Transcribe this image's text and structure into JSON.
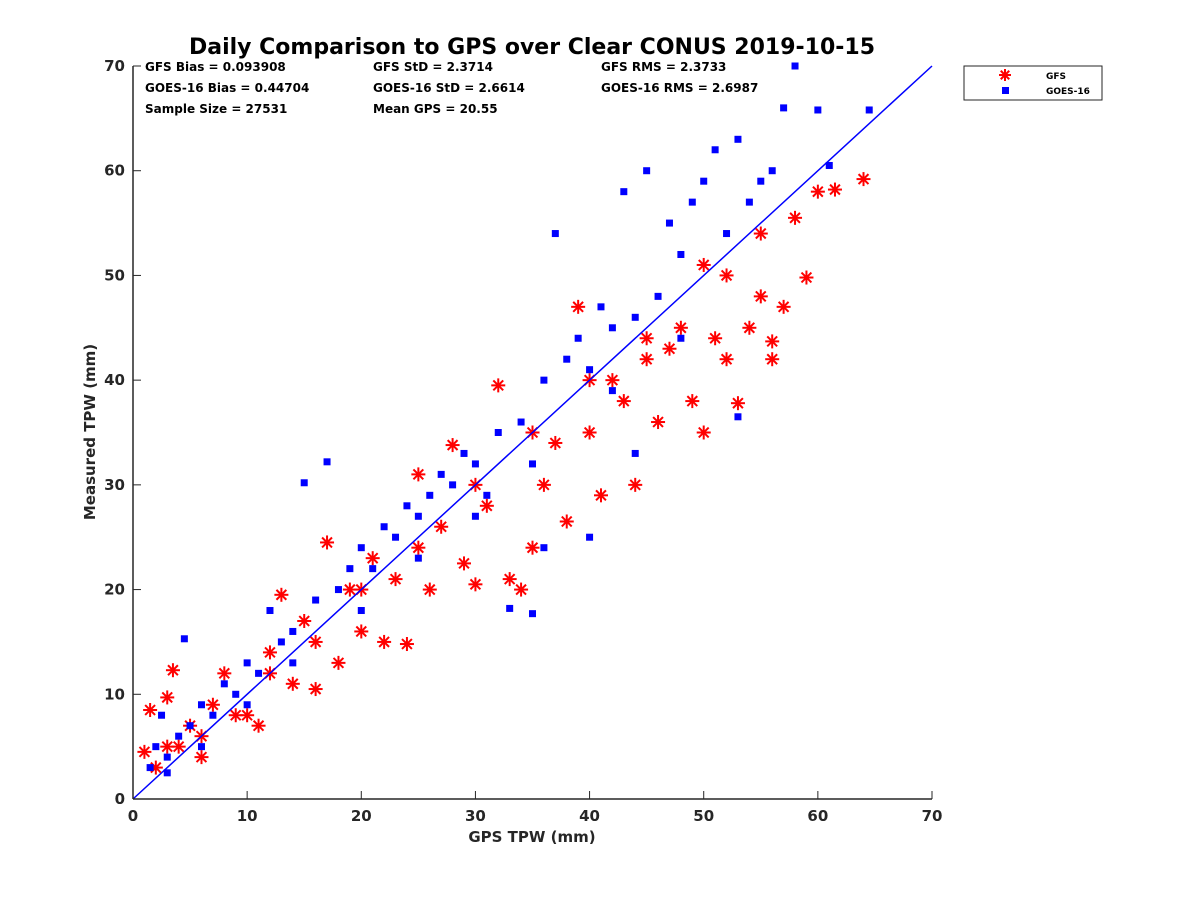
{
  "chart_data": {
    "type": "scatter",
    "title": "Daily Comparison to GPS over Clear CONUS 2019-10-15",
    "xlabel": "GPS TPW (mm)",
    "ylabel": "Measured TPW (mm)",
    "xlim": [
      0,
      70
    ],
    "ylim": [
      0,
      70
    ],
    "xticks": [
      "0",
      "10",
      "20",
      "30",
      "40",
      "50",
      "60",
      "70"
    ],
    "yticks": [
      "0",
      "10",
      "20",
      "30",
      "40",
      "50",
      "60",
      "70"
    ],
    "grid": false,
    "legend_position": "outside-top-right",
    "reference_line": {
      "name": "1:1",
      "from": [
        0,
        0
      ],
      "to": [
        70,
        70
      ],
      "color": "#0000ff"
    },
    "stats": [
      [
        "GFS Bias = 0.093908",
        "GFS StD = 2.3714",
        "GFS RMS = 2.3733"
      ],
      [
        "GOES-16 Bias = 0.44704",
        "GOES-16 StD = 2.6614",
        "GOES-16 RMS = 2.6987"
      ],
      [
        "Sample Size = 27531",
        "Mean GPS = 20.55",
        ""
      ]
    ],
    "series": [
      {
        "name": "GFS",
        "marker": "asterisk",
        "color": "#ff0000",
        "points": [
          [
            1,
            4.5
          ],
          [
            1.5,
            8.5
          ],
          [
            2,
            3
          ],
          [
            3,
            9.7
          ],
          [
            3.5,
            12.3
          ],
          [
            4,
            5
          ],
          [
            5,
            7
          ],
          [
            6,
            4
          ],
          [
            7,
            9
          ],
          [
            8,
            12
          ],
          [
            10,
            8
          ],
          [
            11,
            7
          ],
          [
            12,
            14
          ],
          [
            13,
            19.5
          ],
          [
            14,
            11
          ],
          [
            15,
            17
          ],
          [
            16,
            10.5
          ],
          [
            17,
            24.5
          ],
          [
            18,
            13
          ],
          [
            19,
            20
          ],
          [
            20,
            16
          ],
          [
            21,
            23
          ],
          [
            22,
            15
          ],
          [
            23,
            21
          ],
          [
            24,
            14.8
          ],
          [
            25,
            31
          ],
          [
            26,
            20
          ],
          [
            27,
            26
          ],
          [
            28,
            33.8
          ],
          [
            29,
            22.5
          ],
          [
            30,
            20.5
          ],
          [
            31,
            28
          ],
          [
            32,
            39.5
          ],
          [
            33,
            21
          ],
          [
            34,
            20
          ],
          [
            35,
            24
          ],
          [
            36,
            30
          ],
          [
            37,
            34
          ],
          [
            38,
            26.5
          ],
          [
            39,
            47
          ],
          [
            40,
            35
          ],
          [
            41,
            29
          ],
          [
            42,
            40
          ],
          [
            43,
            38
          ],
          [
            44,
            30
          ],
          [
            45,
            42
          ],
          [
            46,
            36
          ],
          [
            47,
            43
          ],
          [
            48,
            45
          ],
          [
            49,
            38
          ],
          [
            50,
            35
          ],
          [
            51,
            44
          ],
          [
            52,
            50
          ],
          [
            53,
            37.8
          ],
          [
            54,
            45
          ],
          [
            55,
            48
          ],
          [
            56,
            42
          ],
          [
            57,
            47
          ],
          [
            58,
            55.5
          ],
          [
            59,
            49.8
          ],
          [
            60,
            58
          ],
          [
            61.5,
            58.2
          ],
          [
            64,
            59.2
          ],
          [
            52,
            42
          ],
          [
            56,
            43.7
          ],
          [
            3,
            5
          ],
          [
            6,
            6
          ],
          [
            9,
            8
          ],
          [
            12,
            12
          ],
          [
            16,
            15
          ],
          [
            20,
            20
          ],
          [
            25,
            24
          ],
          [
            30,
            30
          ],
          [
            35,
            35
          ],
          [
            40,
            40
          ],
          [
            45,
            44
          ],
          [
            50,
            51
          ],
          [
            55,
            54
          ]
        ]
      },
      {
        "name": "GOES-16",
        "marker": "square",
        "color": "#0000ff",
        "points": [
          [
            1.5,
            3
          ],
          [
            2,
            5
          ],
          [
            2.5,
            8
          ],
          [
            3,
            4
          ],
          [
            4,
            6
          ],
          [
            4.5,
            15.3
          ],
          [
            5,
            7
          ],
          [
            6,
            9
          ],
          [
            7,
            8
          ],
          [
            8,
            11
          ],
          [
            9,
            10
          ],
          [
            10,
            13
          ],
          [
            11,
            12
          ],
          [
            12,
            18
          ],
          [
            13,
            15
          ],
          [
            14,
            16
          ],
          [
            15,
            30.2
          ],
          [
            16,
            19
          ],
          [
            17,
            32.2
          ],
          [
            18,
            20
          ],
          [
            19,
            22
          ],
          [
            20,
            24
          ],
          [
            21,
            22
          ],
          [
            22,
            26
          ],
          [
            23,
            25
          ],
          [
            24,
            28
          ],
          [
            25,
            27
          ],
          [
            26,
            29
          ],
          [
            27,
            31
          ],
          [
            28,
            30
          ],
          [
            29,
            33
          ],
          [
            30,
            32
          ],
          [
            31,
            29
          ],
          [
            32,
            35
          ],
          [
            33,
            18.2
          ],
          [
            34,
            36
          ],
          [
            35,
            17.7
          ],
          [
            36,
            40
          ],
          [
            37,
            54
          ],
          [
            38,
            42
          ],
          [
            39,
            44
          ],
          [
            40,
            41
          ],
          [
            41,
            47
          ],
          [
            42,
            45
          ],
          [
            43,
            58
          ],
          [
            44,
            46
          ],
          [
            45,
            60
          ],
          [
            46,
            48
          ],
          [
            47,
            55
          ],
          [
            48,
            52
          ],
          [
            49,
            57
          ],
          [
            50,
            59
          ],
          [
            51,
            62
          ],
          [
            52,
            54
          ],
          [
            53,
            63
          ],
          [
            54,
            57
          ],
          [
            55,
            59
          ],
          [
            56,
            60
          ],
          [
            57,
            66
          ],
          [
            58,
            70
          ],
          [
            60,
            65.8
          ],
          [
            64.5,
            65.8
          ],
          [
            61,
            60.5
          ],
          [
            36,
            24
          ],
          [
            40,
            25
          ],
          [
            44,
            33
          ],
          [
            53,
            36.5
          ],
          [
            3,
            2.5
          ],
          [
            6,
            5
          ],
          [
            10,
            9
          ],
          [
            14,
            13
          ],
          [
            20,
            18
          ],
          [
            25,
            23
          ],
          [
            30,
            27
          ],
          [
            35,
            32
          ],
          [
            42,
            39
          ],
          [
            48,
            44
          ]
        ]
      }
    ]
  }
}
